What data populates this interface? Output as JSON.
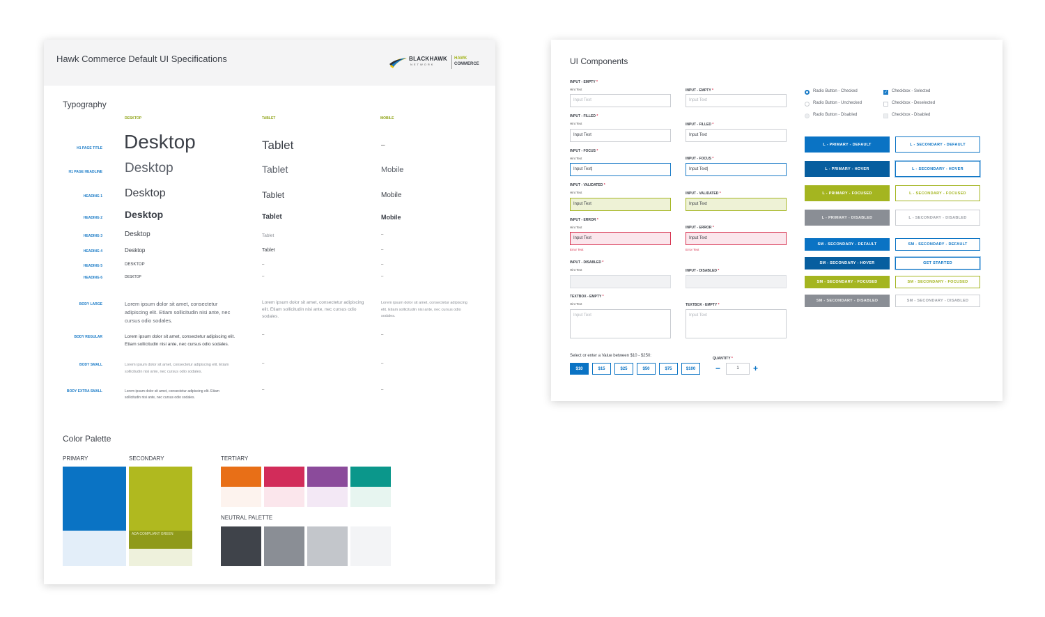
{
  "spec": {
    "title": "Hawk Commerce Default UI Specifications",
    "logo": {
      "brand": "BLACKHAWK",
      "brand_sub": "NETWORK",
      "product_line1": "HAWK",
      "product_line2": "COMMERCE"
    },
    "typography": {
      "title": "Typography",
      "columns": [
        "DESKTOP",
        "TABLET",
        "MOBILE"
      ],
      "rows": [
        {
          "label": "H1 PAGE TITLE",
          "desktop": "Desktop",
          "tablet": "Tablet",
          "mobile": "–"
        },
        {
          "label": "H1 PAGE HEADLINE",
          "desktop": "Desktop",
          "tablet": "Tablet",
          "mobile": "Mobile"
        },
        {
          "label": "HEADING 1",
          "desktop": "Desktop",
          "tablet": "Tablet",
          "mobile": "Mobile"
        },
        {
          "label": "HEADING 2",
          "desktop": "Desktop",
          "tablet": "Tablet",
          "mobile": "Mobile"
        },
        {
          "label": "HEADING 3",
          "desktop": "Desktop",
          "tablet": "Tablet",
          "mobile": "–"
        },
        {
          "label": "HEADING 4",
          "desktop": "Desktop",
          "tablet": "Tablet",
          "mobile": "–"
        },
        {
          "label": "HEADING 5",
          "desktop": "DESKTOP",
          "tablet": "–",
          "mobile": "–"
        },
        {
          "label": "HEADING 6",
          "desktop": "DESKTOP",
          "tablet": "–",
          "mobile": "–"
        },
        {
          "label": "BODY LARGE",
          "desktop": "Lorem ipsum dolor sit amet, consectetur adipiscing elit. Etiam sollicitudin nisi ante, nec cursus odio sodales.",
          "tablet": "Lorem ipsum dolor sit amet, consectetur adipiscing elit. Etiam sollicitudin nisi ante, nec cursus odio sodales.",
          "mobile": "Lorem ipsum dolor sit amet, consectetur adipiscing elit. Etiam sollicitudin nisi ante, nec cursus odio sodales."
        },
        {
          "label": "BODY REGULAR",
          "desktop": "Lorem ipsum dolor sit amet, consectetur adipiscing elit. Etiam sollicitudin nisi ante, nec cursus odio sodales.",
          "tablet": "–",
          "mobile": "–"
        },
        {
          "label": "BODY SMALL",
          "desktop": "Lorem ipsum dolor sit amet, consectetur adipiscing elit. Etiam sollicitudin nisi ante, nec cursus odio sodales.",
          "tablet": "–",
          "mobile": "–"
        },
        {
          "label": "BODY EXTRA SMALL",
          "desktop": "Lorem ipsum dolor sit amet, consectetur adipiscing elit. Etiam sollicitudin nisi ante, nec cursus odio sodales.",
          "tablet": "–",
          "mobile": "–"
        }
      ]
    },
    "palette": {
      "title": "Color Palette",
      "primary_label": "PRIMARY",
      "secondary_label": "SECONDARY",
      "tertiary_label": "TERTIARY",
      "neutral_label": "NEUTRAL PALETTE",
      "ada_label": "ADA COMPLIANT GREEN",
      "primary": [
        "#0a73c4",
        "#e3eef9"
      ],
      "secondary": [
        "#b0b91f",
        "#8f9a1a",
        "#eef1dc"
      ],
      "tertiary": [
        [
          "#e86f17",
          "#fdf3ee"
        ],
        [
          "#d22c5a",
          "#fbe6ec"
        ],
        [
          "#8b4b9b",
          "#f3e8f5"
        ],
        [
          "#0b978b",
          "#e7f5f0"
        ]
      ],
      "neutral": [
        "#3f434a",
        "#8a8e95",
        "#c3c6cb",
        "#f3f4f6"
      ]
    }
  },
  "components": {
    "title": "UI Components",
    "inputs": [
      {
        "label": "INPUT - EMPTY",
        "hint": "Hint Text",
        "value": "Input Text",
        "state": "empty"
      },
      {
        "label": "INPUT - FILLED",
        "hint": "Hint Text",
        "value": "Input Text",
        "state": "filled"
      },
      {
        "label": "INPUT - FOCUS",
        "hint": "Hint Text",
        "value": "Input Text|",
        "state": "focus"
      },
      {
        "label": "INPUT - VALIDATED",
        "hint": "Hint Text",
        "value": "Input Text",
        "state": "valid"
      },
      {
        "label": "INPUT - ERROR",
        "hint": "Hint Text",
        "value": "Input Text",
        "state": "error",
        "error": "Error Text"
      },
      {
        "label": "INPUT - DISABLED",
        "hint": "Hint Text",
        "value": "",
        "state": "disabled"
      },
      {
        "label": "TEXTBOX - EMPTY",
        "hint": "Hint Text",
        "value": "Input Text",
        "state": "area"
      }
    ],
    "required_mark": "*",
    "controls": {
      "radio_checked": "Radio Button - Checked",
      "radio_unchecked": "Radio Button - Unchecked",
      "radio_disabled": "Radio Button - Disabled",
      "check_selected": "Checkbox - Selected",
      "check_deselected": "Checkbox - Deselected",
      "check_disabled": "Checkbox - Disabled"
    },
    "buttons_large": [
      [
        "L - PRIMARY - DEFAULT",
        "L - SECONDARY - DEFAULT"
      ],
      [
        "L - PRIMARY - HOVER",
        "L - SECONDARY - HOVER"
      ],
      [
        "L - PRIMARY - FOCUSED",
        "L - SECONDARY - FOCUSED"
      ],
      [
        "L - PRIMARY - DISABLED",
        "L - SECONDARY - DISABLED"
      ]
    ],
    "buttons_small": [
      [
        "SM - SECONDARY - DEFAULT",
        "SM - SECONDARY - DEFAULT"
      ],
      [
        "SM - SECONDARY - HOVER",
        "GET STARTED"
      ],
      [
        "SM - SECONDARY - FOCUSED",
        "SM - SECONDARY - FOCUSED"
      ],
      [
        "SM - SECONDARY - DISABLED",
        "SM - SECONDARY - DISABLED"
      ]
    ],
    "amount": {
      "label": "Select or enter a Value between $10 - $250:",
      "options": [
        "$10",
        "$15",
        "$25",
        "$50",
        "$75",
        "$100"
      ],
      "selected": "$10"
    },
    "quantity": {
      "label": "QUANTITY",
      "value": "1",
      "minus": "−",
      "plus": "+"
    }
  }
}
